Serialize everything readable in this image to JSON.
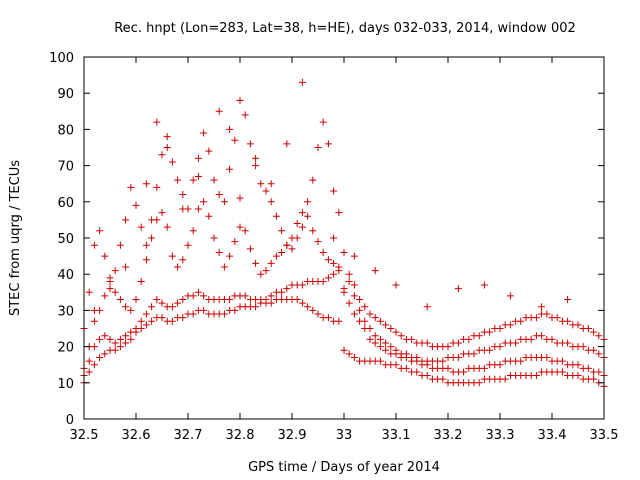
{
  "chart_data": {
    "type": "scatter",
    "title": "Rec. hnpt (Lon=283, Lat=38, h=HE), days 032-033, 2014, window 002",
    "xlabel": "GPS time / Days of year 2014",
    "ylabel": "STEC from uqrg / TECUs",
    "xlim": [
      32.5,
      33.5
    ],
    "ylim": [
      0,
      100
    ],
    "x_ticks": [
      "32.5",
      "32.6",
      "32.7",
      "32.8",
      "32.9",
      "33",
      "33.1",
      "33.2",
      "33.3",
      "33.4",
      "33.5"
    ],
    "y_ticks": [
      "0",
      "10",
      "20",
      "30",
      "40",
      "50",
      "60",
      "70",
      "80",
      "90",
      "100"
    ],
    "grid": false,
    "marker": "plus",
    "color": "#cc0000",
    "series": [
      {
        "x": [
          32.5,
          32.51,
          32.52,
          32.53,
          32.54,
          32.55,
          32.56,
          32.57,
          32.58,
          32.59,
          32.6,
          32.61,
          32.62,
          32.63,
          32.64,
          32.65,
          32.66,
          32.67,
          32.68,
          32.69,
          32.7,
          32.71,
          32.72,
          32.73,
          32.74,
          32.75,
          32.76,
          32.77,
          32.78,
          32.79,
          32.8,
          32.81,
          32.82,
          32.83,
          32.84,
          32.85,
          32.86,
          32.87,
          32.88,
          32.89,
          32.9,
          32.91,
          32.92,
          32.93,
          32.94,
          32.95,
          32.96,
          32.97,
          32.98,
          32.99,
          33.0,
          33.01,
          33.02,
          33.03,
          33.04,
          33.05,
          33.06,
          33.07,
          33.08,
          33.09,
          33.1,
          33.11,
          33.12,
          33.13,
          33.14,
          33.15,
          33.16,
          33.17,
          33.18,
          33.19,
          33.2,
          33.21,
          33.22,
          33.23,
          33.24,
          33.25,
          33.26,
          33.27,
          33.28,
          33.29,
          33.3,
          33.31,
          33.32,
          33.33,
          33.34,
          33.35,
          33.36,
          33.37,
          33.38,
          33.39,
          33.4,
          33.41,
          33.42,
          33.43,
          33.44,
          33.45,
          33.46,
          33.47,
          33.48,
          33.49,
          33.5
        ],
        "y": [
          10,
          13,
          15,
          17,
          18,
          19,
          19,
          20,
          21,
          22,
          24,
          25,
          26,
          27,
          28,
          28,
          27,
          27,
          28,
          28,
          29,
          29,
          30,
          30,
          29,
          29,
          29,
          29,
          30,
          30,
          31,
          31,
          31,
          31,
          32,
          32,
          32,
          33,
          33,
          33,
          33,
          33,
          32,
          31,
          30,
          29,
          28,
          28,
          27,
          27,
          19,
          18,
          17,
          16,
          16,
          16,
          16,
          16,
          15,
          15,
          15,
          14,
          14,
          13,
          13,
          12,
          12,
          11,
          11,
          11,
          10,
          10,
          10,
          10,
          10,
          10,
          10,
          11,
          11,
          11,
          11,
          11,
          12,
          12,
          12,
          12,
          12,
          12,
          13,
          13,
          13,
          13,
          13,
          12,
          12,
          12,
          11,
          11,
          11,
          10,
          9
        ]
      },
      {
        "x": [
          32.5,
          32.51,
          32.52,
          32.53,
          32.54,
          32.55,
          32.56,
          32.57,
          32.58,
          32.59,
          32.6,
          32.61,
          32.62,
          32.63,
          32.64,
          32.65,
          32.66,
          32.67,
          32.68,
          32.69,
          32.7,
          32.71,
          32.72,
          32.73,
          32.74,
          32.75,
          32.76,
          32.77,
          32.78,
          32.79,
          32.8,
          32.81,
          32.82,
          32.83,
          32.84,
          32.85,
          32.86,
          32.87,
          32.88,
          32.89,
          32.9,
          32.91,
          32.92,
          32.93,
          32.94,
          32.95,
          32.96,
          32.97,
          32.98,
          32.99,
          33.0,
          33.01,
          33.02,
          33.03,
          33.04,
          33.05,
          33.06,
          33.07,
          33.08,
          33.09,
          33.1,
          33.11,
          33.12,
          33.13,
          33.14,
          33.15,
          33.16,
          33.17,
          33.18,
          33.19,
          33.2,
          33.21,
          33.22,
          33.23,
          33.24,
          33.25,
          33.26,
          33.27,
          33.28,
          33.29,
          33.3,
          33.31,
          33.32,
          33.33,
          33.34,
          33.35,
          33.36,
          33.37,
          33.38,
          33.39,
          33.4,
          33.41,
          33.42,
          33.43,
          33.44,
          33.45,
          33.46,
          33.47,
          33.48,
          33.49,
          33.5
        ],
        "y": [
          12,
          16,
          20,
          22,
          23,
          22,
          21,
          22,
          23,
          24,
          25,
          27,
          29,
          31,
          33,
          32,
          31,
          31,
          32,
          33,
          34,
          34,
          35,
          34,
          33,
          33,
          33,
          33,
          33,
          34,
          34,
          34,
          33,
          33,
          33,
          33,
          34,
          35,
          35,
          36,
          37,
          37,
          37,
          38,
          38,
          38,
          38,
          39,
          40,
          41,
          35,
          32,
          29,
          27,
          25,
          22,
          21,
          20,
          19,
          18,
          18,
          17,
          17,
          16,
          16,
          15,
          15,
          14,
          14,
          14,
          14,
          13,
          13,
          13,
          14,
          14,
          14,
          14,
          15,
          15,
          15,
          16,
          16,
          16,
          16,
          17,
          17,
          17,
          17,
          17,
          16,
          16,
          16,
          15,
          15,
          15,
          14,
          14,
          13,
          13,
          12
        ]
      },
      {
        "x": [
          32.5,
          32.51,
          32.52,
          32.53,
          32.54,
          32.55,
          32.56,
          32.57,
          32.58,
          32.59,
          32.6,
          32.61,
          32.62,
          32.63,
          32.64,
          32.65,
          32.66,
          32.67,
          32.68,
          32.69,
          32.7,
          32.71,
          32.72,
          32.73,
          32.74,
          32.75,
          32.76,
          32.77,
          32.78,
          32.79,
          32.8,
          32.81,
          32.82,
          32.83,
          32.84,
          32.85,
          32.86,
          32.87,
          32.88,
          32.89,
          32.9,
          32.91,
          32.92,
          32.93,
          32.94,
          32.95,
          32.96,
          32.97,
          32.98,
          32.99,
          33.0,
          33.01,
          33.02,
          33.03,
          33.04,
          33.05,
          33.06,
          33.07,
          33.08,
          33.09,
          33.1,
          33.11,
          33.12,
          33.13,
          33.14,
          33.15,
          33.16,
          33.17,
          33.18,
          33.19,
          33.2,
          33.21,
          33.22,
          33.23,
          33.24,
          33.25,
          33.26,
          33.27,
          33.28,
          33.29,
          33.3,
          33.31,
          33.32,
          33.33,
          33.34,
          33.35,
          33.36,
          33.37,
          33.38,
          33.39,
          33.4,
          33.41,
          33.42,
          33.43,
          33.44,
          33.45,
          33.46,
          33.47,
          33.48,
          33.49,
          33.5
        ],
        "y": [
          14,
          20,
          27,
          30,
          34,
          36,
          35,
          33,
          31,
          30,
          33,
          38,
          44,
          50,
          55,
          57,
          53,
          45,
          42,
          44,
          48,
          52,
          58,
          60,
          56,
          50,
          46,
          42,
          45,
          49,
          53,
          52,
          47,
          43,
          40,
          41,
          43,
          45,
          46,
          48,
          50,
          54,
          57,
          56,
          52,
          49,
          46,
          44,
          43,
          42,
          46,
          38,
          34,
          30,
          27,
          25,
          23,
          22,
          21,
          20,
          19,
          18,
          18,
          17,
          17,
          16,
          16,
          16,
          16,
          16,
          17,
          17,
          17,
          18,
          18,
          18,
          19,
          19,
          19,
          20,
          20,
          21,
          21,
          21,
          22,
          22,
          22,
          23,
          23,
          22,
          22,
          21,
          21,
          21,
          20,
          20,
          20,
          19,
          19,
          18,
          17
        ]
      },
      {
        "x": [
          32.5,
          32.51,
          32.52,
          32.53,
          32.54,
          32.55,
          32.56,
          32.57,
          32.58,
          32.59,
          32.6,
          32.61,
          32.62,
          32.63,
          32.64,
          32.65,
          32.66,
          32.67,
          32.68,
          32.69,
          32.7,
          32.71,
          32.72,
          32.73,
          32.74,
          32.75,
          32.76,
          32.77,
          32.78,
          32.79,
          32.8,
          32.81,
          32.82,
          32.83,
          32.84,
          32.85,
          32.86,
          32.87,
          32.88,
          32.89,
          32.9,
          32.91,
          32.92,
          32.93,
          32.94,
          32.95,
          32.96,
          32.97,
          32.98,
          32.99,
          33.0,
          33.01,
          33.02,
          33.03,
          33.04,
          33.05,
          33.06,
          33.07,
          33.08,
          33.09,
          33.1,
          33.11,
          33.12,
          33.13,
          33.14,
          33.15,
          33.16,
          33.17,
          33.18,
          33.19,
          33.2,
          33.21,
          33.22,
          33.23,
          33.24,
          33.25,
          33.26,
          33.27,
          33.28,
          33.29,
          33.3,
          33.31,
          33.32,
          33.33,
          33.34,
          33.35,
          33.36,
          33.37,
          33.38,
          33.39,
          33.4,
          33.41,
          33.42,
          33.43,
          33.44,
          33.45,
          33.46,
          33.47,
          33.48,
          33.49,
          33.5
        ],
        "y": [
          25,
          35,
          48,
          52,
          45,
          39,
          41,
          48,
          55,
          64,
          59,
          53,
          48,
          55,
          64,
          73,
          78,
          71,
          66,
          62,
          58,
          66,
          72,
          79,
          74,
          66,
          62,
          60,
          69,
          77,
          88,
          84,
          76,
          70,
          65,
          63,
          60,
          56,
          52,
          48,
          47,
          50,
          53,
          60,
          66,
          75,
          82,
          76,
          63,
          57,
          36,
          40,
          37,
          33,
          31,
          29,
          28,
          27,
          26,
          25,
          24,
          23,
          22,
          22,
          21,
          21,
          21,
          20,
          20,
          20,
          20,
          21,
          21,
          22,
          22,
          23,
          23,
          24,
          24,
          25,
          25,
          26,
          26,
          27,
          27,
          28,
          28,
          28,
          29,
          29,
          28,
          28,
          27,
          27,
          26,
          26,
          25,
          25,
          24,
          23,
          22
        ]
      },
      {
        "x": [
          32.52,
          32.55,
          32.58,
          32.62,
          32.64,
          32.66,
          32.69,
          32.72,
          32.76,
          32.78,
          32.8,
          32.83,
          32.86,
          32.89,
          32.92,
          32.95,
          32.98,
          33.02,
          33.06,
          33.1,
          33.16,
          33.22,
          33.27,
          33.32,
          33.38,
          33.43
        ],
        "y": [
          30,
          38,
          42,
          65,
          82,
          75,
          58,
          67,
          85,
          80,
          61,
          72,
          65,
          76,
          93,
          75,
          50,
          45,
          41,
          37,
          31,
          36,
          37,
          34,
          31,
          33
        ]
      }
    ]
  }
}
